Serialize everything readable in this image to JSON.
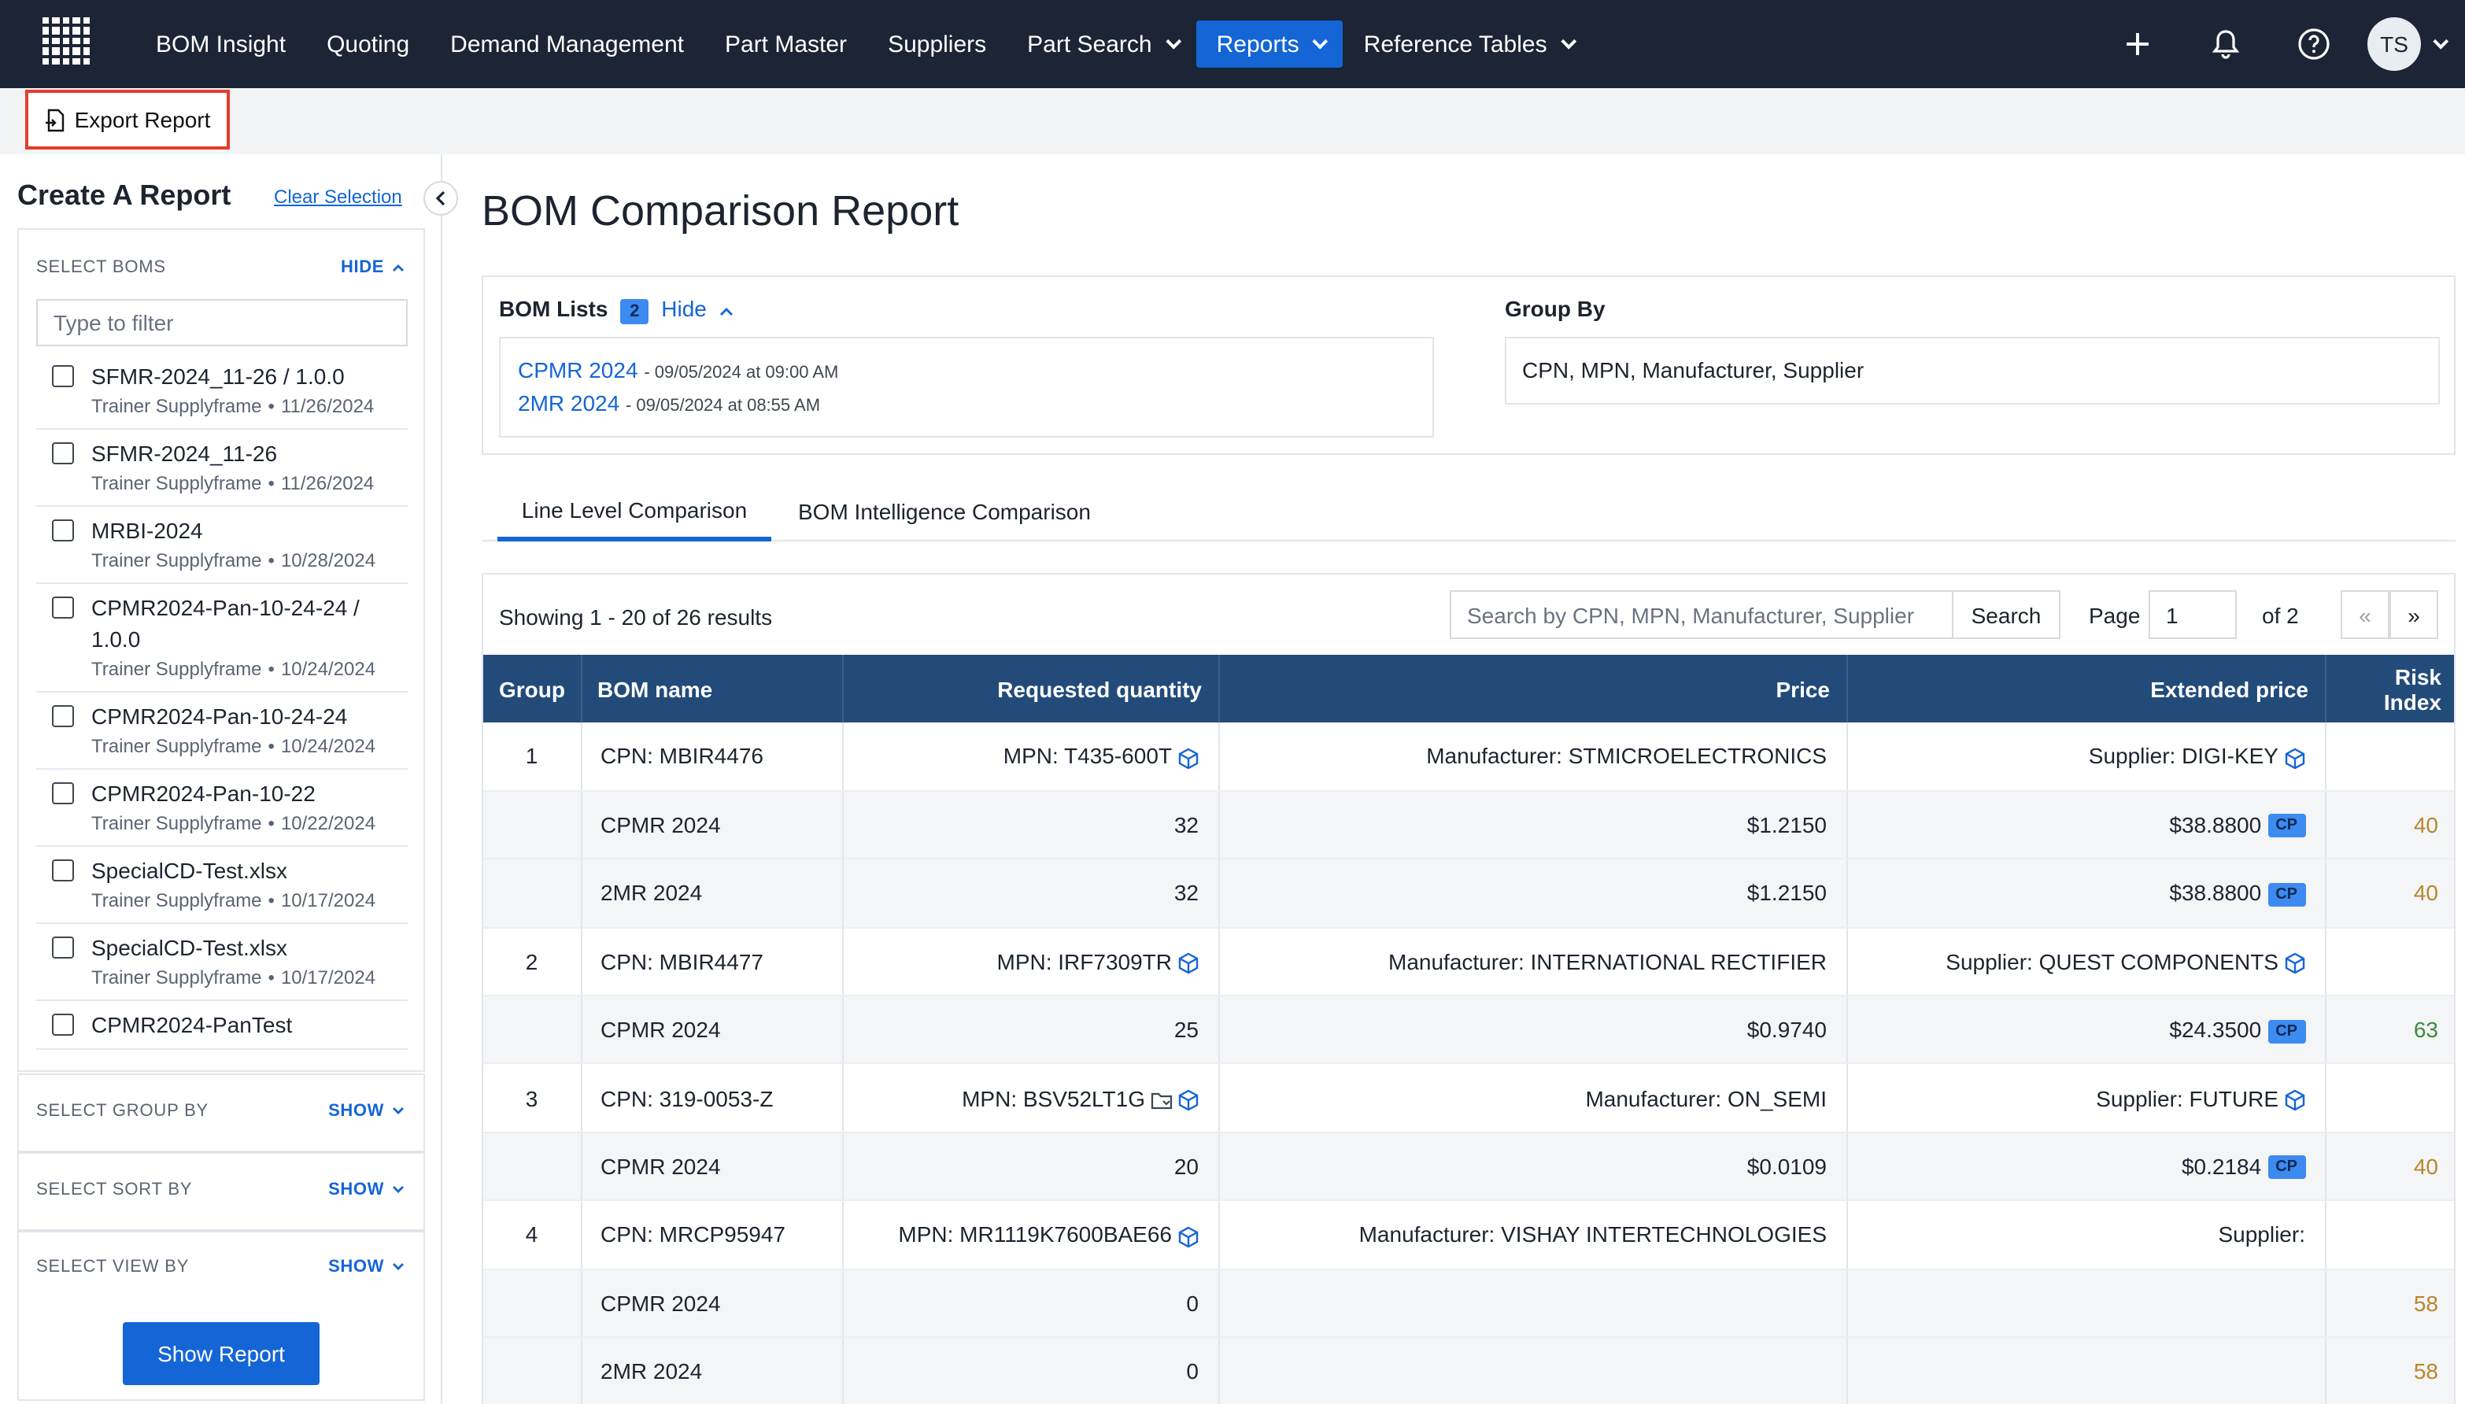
{
  "nav": {
    "items": [
      {
        "label": "BOM Insight",
        "dropdown": false,
        "active": false
      },
      {
        "label": "Quoting",
        "dropdown": false,
        "active": false
      },
      {
        "label": "Demand Management",
        "dropdown": false,
        "active": false
      },
      {
        "label": "Part Master",
        "dropdown": false,
        "active": false
      },
      {
        "label": "Suppliers",
        "dropdown": false,
        "active": false
      },
      {
        "label": "Part Search",
        "dropdown": true,
        "active": false
      },
      {
        "label": "Reports",
        "dropdown": true,
        "active": true
      },
      {
        "label": "Reference Tables",
        "dropdown": true,
        "active": false
      }
    ],
    "avatar_initials": "TS",
    "icons": [
      "plus-icon",
      "bell-icon",
      "help-icon"
    ]
  },
  "toolbar": {
    "export_label": "Export Report"
  },
  "sidebar": {
    "title": "Create A Report",
    "clear_label": "Clear Selection",
    "select_boms": {
      "heading": "SELECT BOMS",
      "toggle": "HIDE"
    },
    "filter_placeholder": "Type to filter",
    "boms": [
      {
        "name": "SFMR-2024_11-26 / 1.0.0",
        "owner": "Trainer Supplyframe",
        "date": "11/26/2024"
      },
      {
        "name": "SFMR-2024_11-26",
        "owner": "Trainer Supplyframe",
        "date": "11/26/2024"
      },
      {
        "name": "MRBI-2024",
        "owner": "Trainer Supplyframe",
        "date": "10/28/2024"
      },
      {
        "name": "CPMR2024-Pan-10-24-24 / 1.0.0",
        "owner": "Trainer Supplyframe",
        "date": "10/24/2024"
      },
      {
        "name": "CPMR2024-Pan-10-24-24",
        "owner": "Trainer Supplyframe",
        "date": "10/24/2024"
      },
      {
        "name": "CPMR2024-Pan-10-22",
        "owner": "Trainer Supplyframe",
        "date": "10/22/2024"
      },
      {
        "name": "SpecialCD-Test.xlsx",
        "owner": "Trainer Supplyframe",
        "date": "10/17/2024"
      },
      {
        "name": "SpecialCD-Test.xlsx",
        "owner": "Trainer Supplyframe",
        "date": "10/17/2024"
      },
      {
        "name": "CPMR2024-PanTest",
        "owner": "",
        "date": ""
      }
    ],
    "meta_separator": "•",
    "group_by": {
      "heading": "SELECT GROUP BY",
      "toggle": "SHOW"
    },
    "sort_by": {
      "heading": "SELECT SORT BY",
      "toggle": "SHOW"
    },
    "view_by": {
      "heading": "SELECT VIEW BY",
      "toggle": "SHOW"
    },
    "show_report_label": "Show Report"
  },
  "report": {
    "title": "BOM Comparison Report",
    "bom_lists_label": "BOM Lists",
    "bom_count": "2",
    "hide_label": "Hide",
    "bom_lists": [
      {
        "name": "CPMR 2024",
        "when": "- 09/05/2024 at 09:00 AM"
      },
      {
        "name": "2MR 2024",
        "when": "- 09/05/2024 at 08:55 AM"
      }
    ],
    "group_by_label": "Group By",
    "group_by_value": "CPN, MPN, Manufacturer, Supplier",
    "tabs": [
      {
        "label": "Line Level Comparison",
        "active": true
      },
      {
        "label": "BOM Intelligence Comparison",
        "active": false
      }
    ],
    "showing": "Showing 1 - 20 of 26 results",
    "search_placeholder": "Search by CPN, MPN, Manufacturer, Supplier",
    "search_label": "Search",
    "page_label": "Page",
    "page_value": "1",
    "of_label": "of 2",
    "prev_label": "«",
    "next_label": "»",
    "columns": [
      "Group",
      "BOM name",
      "Requested quantity",
      "Price",
      "Extended price",
      "Risk Index"
    ],
    "rows": [
      {
        "type": "group",
        "group": "1",
        "bom": "CPN: MBIR4476",
        "qty": "MPN: T435-600T",
        "price": "Manufacturer: STMICROELECTRONICS",
        "ext": "Supplier: DIGI-KEY",
        "risk": "",
        "icons": [
          "cube-icon"
        ],
        "ext_icon": true,
        "cp": false
      },
      {
        "type": "sub",
        "group": "",
        "bom": "CPMR 2024",
        "qty": "32",
        "price": "$1.2150",
        "ext": "$38.8800",
        "risk": "40",
        "risk_color": "#b9862a",
        "cp": true
      },
      {
        "type": "sub",
        "group": "",
        "bom": "2MR 2024",
        "qty": "32",
        "price": "$1.2150",
        "ext": "$38.8800",
        "risk": "40",
        "risk_color": "#b9862a",
        "cp": true
      },
      {
        "type": "group",
        "group": "2",
        "bom": "CPN: MBIR4477",
        "qty": "MPN: IRF7309TR",
        "price": "Manufacturer: INTERNATIONAL RECTIFIER",
        "ext": "Supplier: QUEST COMPONENTS",
        "risk": "",
        "icons": [
          "cube-icon"
        ],
        "ext_icon": true,
        "cp": false
      },
      {
        "type": "sub",
        "group": "",
        "bom": "CPMR 2024",
        "qty": "25",
        "price": "$0.9740",
        "ext": "$24.3500",
        "risk": "63",
        "risk_color": "#3d8a3d",
        "cp": true
      },
      {
        "type": "group",
        "group": "3",
        "bom": "CPN: 319-0053-Z",
        "qty": "MPN: BSV52LT1G",
        "price": "Manufacturer: ON_SEMI",
        "ext": "Supplier: FUTURE",
        "risk": "",
        "icons": [
          "folder-icon",
          "cube-icon"
        ],
        "ext_icon": true,
        "cp": false
      },
      {
        "type": "sub",
        "group": "",
        "bom": "CPMR 2024",
        "qty": "20",
        "price": "$0.0109",
        "ext": "$0.2184",
        "risk": "40",
        "risk_color": "#b9862a",
        "cp": true
      },
      {
        "type": "group",
        "group": "4",
        "bom": "CPN: MRCP95947",
        "qty": "MPN: MR1119K7600BAE66",
        "price": "Manufacturer: VISHAY INTERTECHNOLOGIES",
        "ext": "Supplier:",
        "risk": "",
        "icons": [
          "cube-icon"
        ],
        "ext_icon": false,
        "cp": false
      },
      {
        "type": "sub",
        "group": "",
        "bom": "CPMR 2024",
        "qty": "0",
        "price": "",
        "ext": "",
        "risk": "58",
        "risk_color": "#b9862a",
        "cp": false
      },
      {
        "type": "sub",
        "group": "",
        "bom": "2MR 2024",
        "qty": "0",
        "price": "",
        "ext": "",
        "risk": "58",
        "risk_color": "#b9862a",
        "cp": false
      }
    ],
    "cp_label": "CP",
    "colors": {
      "accent": "#1465d6",
      "header": "#224b7a",
      "nav": "#1c2535",
      "risk_yellow": "#b9862a",
      "risk_green": "#3d8a3d",
      "highlight": "#e53b2c"
    }
  }
}
